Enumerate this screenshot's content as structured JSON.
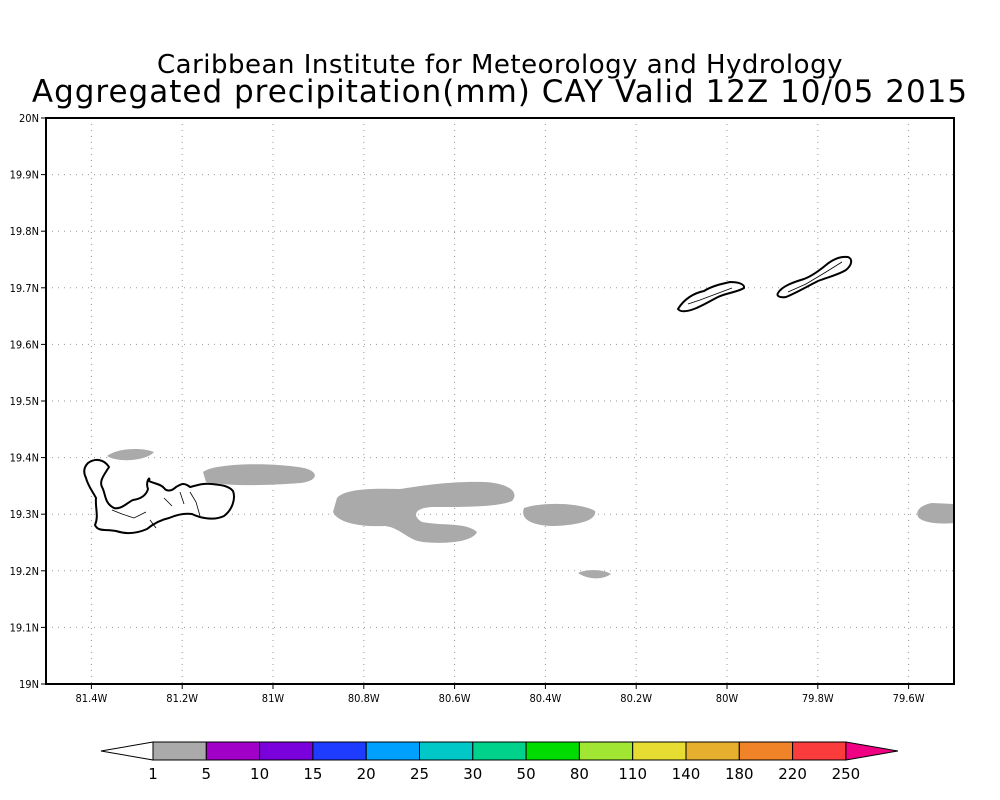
{
  "title": {
    "line1": "Caribbean Institute for Meteorology and Hydrology",
    "line2": "Aggregated precipitation(mm) CAY Valid 12Z 10/05 2015"
  },
  "map": {
    "lon_range": [
      -81.5,
      -79.5
    ],
    "lat_range": [
      19.0,
      20.0
    ],
    "x_ticks": [
      {
        "lon": -81.4,
        "label": "81.4W"
      },
      {
        "lon": -81.2,
        "label": "81.2W"
      },
      {
        "lon": -81.0,
        "label": "81W"
      },
      {
        "lon": -80.8,
        "label": "80.8W"
      },
      {
        "lon": -80.6,
        "label": "80.6W"
      },
      {
        "lon": -80.4,
        "label": "80.4W"
      },
      {
        "lon": -80.2,
        "label": "80.2W"
      },
      {
        "lon": -80.0,
        "label": "80W"
      },
      {
        "lon": -79.8,
        "label": "79.8W"
      },
      {
        "lon": -79.6,
        "label": "79.6W"
      }
    ],
    "y_ticks": [
      {
        "lat": 19.0,
        "label": "19N"
      },
      {
        "lat": 19.1,
        "label": "19.1N"
      },
      {
        "lat": 19.2,
        "label": "19.2N"
      },
      {
        "lat": 19.3,
        "label": "19.3N"
      },
      {
        "lat": 19.4,
        "label": "19.4N"
      },
      {
        "lat": 19.5,
        "label": "19.5N"
      },
      {
        "lat": 19.6,
        "label": "19.6N"
      },
      {
        "lat": 19.7,
        "label": "19.7N"
      },
      {
        "lat": 19.8,
        "label": "19.8N"
      },
      {
        "lat": 19.9,
        "label": "19.9N"
      },
      {
        "lat": 20.0,
        "label": "20N"
      }
    ],
    "grid": "dotted",
    "precip_color": "#aaaaaa",
    "islands": [
      "Grand Cayman",
      "Little Cayman",
      "Cayman Brac"
    ]
  },
  "colorbar": {
    "labels": [
      "1",
      "5",
      "10",
      "15",
      "20",
      "25",
      "30",
      "50",
      "80",
      "110",
      "140",
      "180",
      "220",
      "250"
    ],
    "colors": [
      "#aaaaaa",
      "#a000c8",
      "#7a00dc",
      "#1e3cff",
      "#00a0ff",
      "#00c8c8",
      "#00d28c",
      "#00dc00",
      "#a0e632",
      "#e6dc32",
      "#e6af2d",
      "#f08228",
      "#fa3c3c",
      "#f00082"
    ],
    "under_color": "#ffffff",
    "over_color": "#f00082"
  }
}
